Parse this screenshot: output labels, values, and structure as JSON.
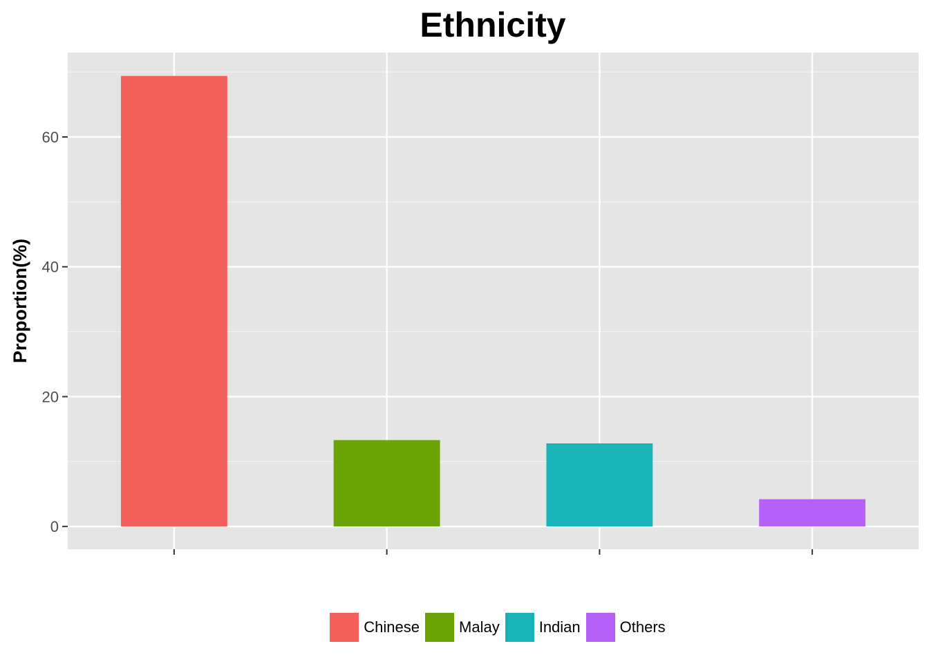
{
  "chart_data": {
    "type": "bar",
    "title": "Ethnicity",
    "xlabel": "",
    "ylabel": "Proportion(%)",
    "categories": [
      "Chinese",
      "Malay",
      "Indian",
      "Others"
    ],
    "values": [
      69.4,
      13.3,
      12.8,
      4.2
    ],
    "colors": [
      "#F35F5B",
      "#6BA305",
      "#1AB3B8",
      "#B761FB"
    ],
    "ylim": [
      -3.5,
      73
    ],
    "yticks": [
      0,
      20,
      40,
      60
    ],
    "ytick_labels": [
      "0",
      "20",
      "40",
      "60"
    ],
    "show_x_tick_labels": false,
    "grid": true,
    "background": "#E5E5E5",
    "legend_position": "bottom"
  }
}
